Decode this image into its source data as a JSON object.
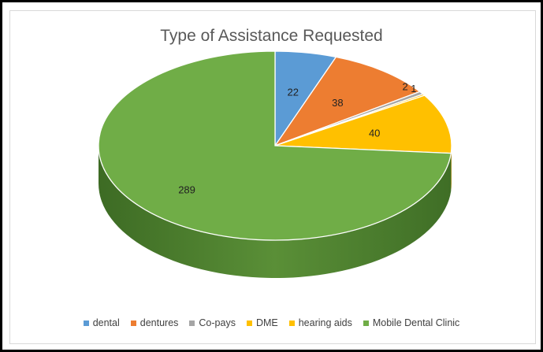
{
  "chart_data": {
    "type": "pie",
    "title": "Type of Assistance Requested",
    "categories": [
      "dental",
      "dentures",
      "Co-pays",
      "DME",
      "hearing aids",
      "Mobile Dental Clinic"
    ],
    "values": [
      22,
      38,
      2,
      1,
      40,
      289
    ],
    "data_labels": [
      "22",
      "38",
      "2",
      "1",
      "40",
      "289"
    ],
    "colors": [
      "#5b9bd5",
      "#ed7d31",
      "#a5a5a5",
      "#ffc000",
      "#ffc000",
      "#70ad47"
    ],
    "legend_position": "bottom",
    "style": "3d"
  }
}
